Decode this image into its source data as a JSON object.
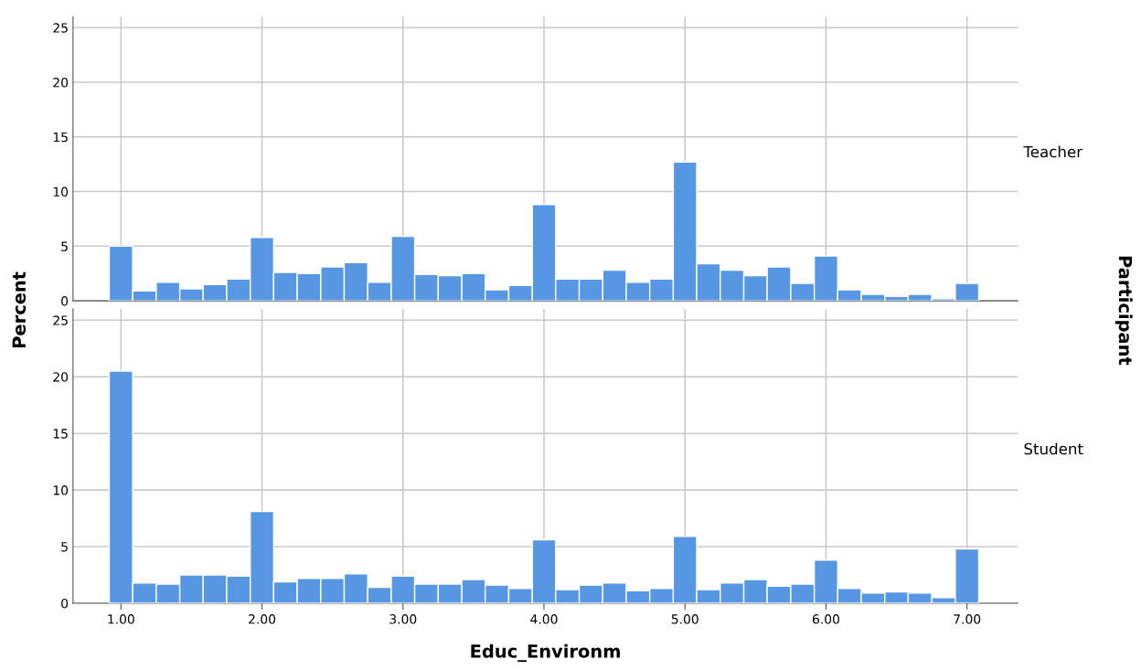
{
  "chart_data": [
    {
      "type": "histogram",
      "ylabel": "Percent",
      "y2label": "Participant",
      "annotations": [
        "Teacher"
      ],
      "color": "#5796e3",
      "bins": [
        0.917,
        1.083,
        1.25,
        1.417,
        1.583,
        1.75,
        1.917,
        2.083,
        2.25,
        2.417,
        2.583,
        2.75,
        2.917,
        3.083,
        3.25,
        3.417,
        3.583,
        3.75,
        3.917,
        4.083,
        4.25,
        4.417,
        4.583,
        4.75,
        4.917,
        5.083,
        5.25,
        5.417,
        5.583,
        5.75,
        5.917,
        6.083,
        6.25,
        6.417,
        6.583,
        6.75,
        6.917,
        7.083
      ],
      "values": [
        5.0,
        0.9,
        1.7,
        1.1,
        1.5,
        2.0,
        5.8,
        2.6,
        2.5,
        3.1,
        3.5,
        1.7,
        5.9,
        2.4,
        2.3,
        2.5,
        1.0,
        1.4,
        8.8,
        2.0,
        2.0,
        2.8,
        1.7,
        2.0,
        12.7,
        3.4,
        2.8,
        2.3,
        3.1,
        1.6,
        4.1,
        1.0,
        0.6,
        0.4,
        0.6,
        0.2,
        1.6
      ],
      "xlim": [
        0.66,
        7.36
      ],
      "ylim": [
        0,
        26
      ],
      "yticks": [
        0,
        5,
        10,
        15,
        20,
        25
      ],
      "xticks": [
        {
          "value": 1,
          "label": null
        },
        {
          "value": 2,
          "label": null
        },
        {
          "value": 3,
          "label": null
        },
        {
          "value": 4,
          "label": null
        },
        {
          "value": 5,
          "label": null
        },
        {
          "value": 6,
          "label": null
        },
        {
          "value": 7,
          "label": null
        }
      ],
      "tick_labels": "y",
      "grid": true
    },
    {
      "type": "histogram",
      "xlabel": "Educ_Environm",
      "annotations": [
        "Student"
      ],
      "color": "#5796e3",
      "bins": [
        0.917,
        1.083,
        1.25,
        1.417,
        1.583,
        1.75,
        1.917,
        2.083,
        2.25,
        2.417,
        2.583,
        2.75,
        2.917,
        3.083,
        3.25,
        3.417,
        3.583,
        3.75,
        3.917,
        4.083,
        4.25,
        4.417,
        4.583,
        4.75,
        4.917,
        5.083,
        5.25,
        5.417,
        5.583,
        5.75,
        5.917,
        6.083,
        6.25,
        6.417,
        6.583,
        6.75,
        6.917,
        7.083
      ],
      "values": [
        20.5,
        1.8,
        1.7,
        2.5,
        2.5,
        2.4,
        8.1,
        1.9,
        2.2,
        2.2,
        2.6,
        1.4,
        2.4,
        1.7,
        1.7,
        2.1,
        1.6,
        1.3,
        5.6,
        1.2,
        1.6,
        1.8,
        1.1,
        1.3,
        5.9,
        1.2,
        1.8,
        2.1,
        1.5,
        1.7,
        3.8,
        1.3,
        0.9,
        1.0,
        0.9,
        0.5,
        4.8
      ],
      "xlim": [
        0.66,
        7.36
      ],
      "ylim": [
        0,
        26
      ],
      "yticks": [
        0,
        5,
        10,
        15,
        20,
        25
      ],
      "xticks": [
        {
          "value": 1,
          "label": "1.00"
        },
        {
          "value": 2,
          "label": "2.00"
        },
        {
          "value": 3,
          "label": "3.00"
        },
        {
          "value": 4,
          "label": "4.00"
        },
        {
          "value": 5,
          "label": "5.00"
        },
        {
          "value": 6,
          "label": "6.00"
        },
        {
          "value": 7,
          "label": "7.00"
        }
      ],
      "grid": true
    }
  ]
}
